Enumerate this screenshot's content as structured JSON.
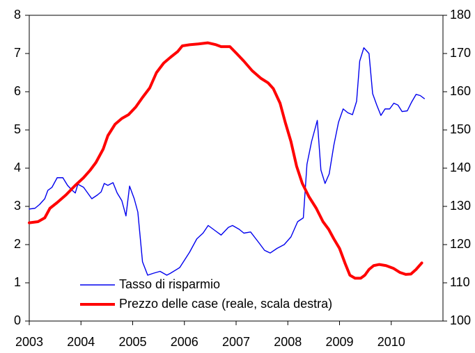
{
  "chart_data": {
    "type": "line",
    "xlim": [
      2003,
      2011
    ],
    "xticks": [
      2003,
      2004,
      2005,
      2006,
      2007,
      2008,
      2009,
      2010
    ],
    "ylim": [
      0,
      8
    ],
    "yticks": [
      0,
      1,
      2,
      3,
      4,
      5,
      6,
      7,
      8
    ],
    "y2lim": [
      100,
      180
    ],
    "y2ticks": [
      100,
      110,
      120,
      130,
      140,
      150,
      160,
      170,
      180
    ],
    "legend": "lower left",
    "series": [
      {
        "name": "Tasso di risparmio",
        "color": "#0000ee",
        "axis": "y",
        "x": [
          2003.0,
          2003.11,
          2003.2,
          2003.3,
          2003.36,
          2003.44,
          2003.54,
          2003.65,
          2003.74,
          2003.83,
          2003.89,
          2003.94,
          2004.05,
          2004.13,
          2004.21,
          2004.32,
          2004.39,
          2004.45,
          2004.52,
          2004.62,
          2004.7,
          2004.79,
          2004.87,
          2004.94,
          2005.03,
          2005.1,
          2005.19,
          2005.29,
          2005.4,
          2005.53,
          2005.66,
          2005.73,
          2005.91,
          2006.1,
          2006.24,
          2006.36,
          2006.46,
          2006.61,
          2006.71,
          2006.85,
          2006.93,
          2007.06,
          2007.15,
          2007.28,
          2007.44,
          2007.55,
          2007.66,
          2007.79,
          2007.93,
          2008.06,
          2008.19,
          2008.3,
          2008.37,
          2008.46,
          2008.57,
          2008.64,
          2008.72,
          2008.8,
          2008.89,
          2008.98,
          2009.07,
          2009.16,
          2009.25,
          2009.33,
          2009.39,
          2009.47,
          2009.57,
          2009.64,
          2009.72,
          2009.8,
          2009.88,
          2009.97,
          2010.05,
          2010.13,
          2010.21,
          2010.31,
          2010.39,
          2010.48,
          2010.56,
          2010.64
        ],
        "values": [
          2.93,
          2.95,
          3.05,
          3.2,
          3.42,
          3.5,
          3.75,
          3.75,
          3.55,
          3.42,
          3.35,
          3.58,
          3.5,
          3.35,
          3.2,
          3.3,
          3.38,
          3.6,
          3.55,
          3.62,
          3.35,
          3.15,
          2.75,
          3.53,
          3.2,
          2.85,
          1.55,
          1.2,
          1.25,
          1.3,
          1.2,
          1.25,
          1.4,
          1.8,
          2.15,
          2.3,
          2.5,
          2.35,
          2.25,
          2.45,
          2.5,
          2.4,
          2.3,
          2.33,
          2.05,
          1.85,
          1.78,
          1.9,
          2.0,
          2.2,
          2.6,
          2.7,
          4.1,
          4.7,
          5.25,
          3.95,
          3.6,
          3.85,
          4.6,
          5.2,
          5.55,
          5.45,
          5.4,
          5.75,
          6.8,
          7.15,
          7.0,
          5.95,
          5.65,
          5.38,
          5.55,
          5.55,
          5.7,
          5.65,
          5.48,
          5.5,
          5.72,
          5.93,
          5.9,
          5.82
        ]
      },
      {
        "name": "Prezzo delle case (reale, scala destra)",
        "color": "#ff0000",
        "axis": "y2",
        "x": [
          2003.0,
          2003.17,
          2003.3,
          2003.4,
          2003.54,
          2003.71,
          2003.89,
          2004.05,
          2004.18,
          2004.29,
          2004.43,
          2004.52,
          2004.66,
          2004.79,
          2004.92,
          2005.06,
          2005.19,
          2005.33,
          2005.46,
          2005.6,
          2005.73,
          2005.87,
          2005.96,
          2006.1,
          2006.27,
          2006.45,
          2006.61,
          2006.71,
          2006.88,
          2007.01,
          2007.15,
          2007.31,
          2007.48,
          2007.62,
          2007.72,
          2007.85,
          2007.95,
          2008.06,
          2008.17,
          2008.28,
          2008.41,
          2008.55,
          2008.68,
          2008.79,
          2008.89,
          2009.0,
          2009.11,
          2009.2,
          2009.3,
          2009.41,
          2009.49,
          2009.57,
          2009.66,
          2009.77,
          2009.9,
          2010.04,
          2010.17,
          2010.28,
          2010.38,
          2010.48,
          2010.59
        ],
        "values": [
          125.7,
          126,
          127,
          129.5,
          131,
          133,
          135.5,
          137.5,
          139.5,
          141.5,
          145,
          148.5,
          151.5,
          153,
          154,
          156,
          158.5,
          161,
          165,
          167.5,
          169,
          170.5,
          172,
          172.3,
          172.5,
          172.8,
          172.3,
          171.8,
          171.8,
          170,
          168,
          165.5,
          163.5,
          162.3,
          160.8,
          157,
          152,
          147,
          140.5,
          136,
          132.5,
          129.5,
          126,
          124,
          121.5,
          119,
          115,
          112,
          111.2,
          111.2,
          112,
          113.5,
          114.5,
          114.8,
          114.5,
          113.8,
          112.7,
          112.2,
          112.3,
          113.5,
          115.2
        ]
      }
    ]
  }
}
